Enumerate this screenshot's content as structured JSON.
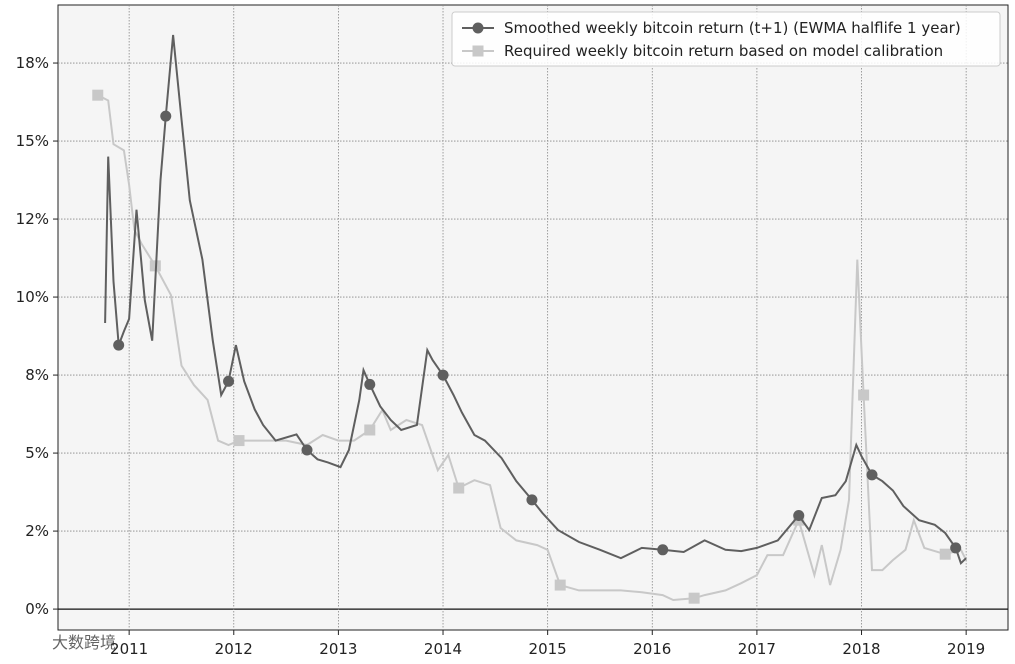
{
  "chart_data": {
    "type": "line",
    "xlim": [
      2010.32,
      2019.4
    ],
    "xticks": [
      2011,
      2012,
      2013,
      2014,
      2015,
      2016,
      2017,
      2018,
      2019
    ],
    "ylim": [
      -0.67,
      19.36
    ],
    "yticks": [
      0,
      {
        "value": 2.5,
        "label": "2%"
      },
      5,
      {
        "value": 7.5,
        "label": "8%"
      },
      10,
      {
        "value": 12.5,
        "label": "12%"
      },
      15,
      {
        "value": 17.5,
        "label": "18%"
      }
    ],
    "ytick_labels": [
      "0%",
      "2%",
      "5%",
      "8%",
      "10%",
      "12%",
      "15%",
      "18%"
    ],
    "grid": true,
    "legend": "upper right",
    "watermark": "大数跨境",
    "series": [
      {
        "name": "Smoothed weekly bitcoin return (t+1) (EWMA halflife 1 year)",
        "color": "#5f5f5f",
        "marker": "circle",
        "x": [
          2010.77,
          2010.8,
          2010.85,
          2010.9,
          2010.95,
          2011.0,
          2011.07,
          2011.15,
          2011.22,
          2011.3,
          2011.35,
          2011.42,
          2011.5,
          2011.58,
          2011.7,
          2011.8,
          2011.88,
          2011.95,
          2012.02,
          2012.1,
          2012.2,
          2012.28,
          2012.4,
          2012.6,
          2012.7,
          2012.8,
          2012.9,
          2013.02,
          2013.1,
          2013.2,
          2013.24,
          2013.3,
          2013.4,
          2013.5,
          2013.6,
          2013.75,
          2013.85,
          2013.9,
          2014.0,
          2014.1,
          2014.18,
          2014.3,
          2014.4,
          2014.56,
          2014.7,
          2014.85,
          2014.95,
          2015.1,
          2015.3,
          2015.5,
          2015.7,
          2015.9,
          2016.1,
          2016.3,
          2016.5,
          2016.7,
          2016.85,
          2017.0,
          2017.2,
          2017.4,
          2017.5,
          2017.62,
          2017.75,
          2017.85,
          2017.95,
          2018.0,
          2018.1,
          2018.2,
          2018.3,
          2018.4,
          2018.55,
          2018.7,
          2018.8,
          2018.9,
          2018.95,
          2019.0
        ],
        "values": [
          9.17,
          14.5,
          10.5,
          8.46,
          8.9,
          9.3,
          12.8,
          9.9,
          8.6,
          13.75,
          15.8,
          18.4,
          15.7,
          13.1,
          11.2,
          8.6,
          6.86,
          7.3,
          8.46,
          7.3,
          6.4,
          5.9,
          5.4,
          5.6,
          5.1,
          4.8,
          4.7,
          4.55,
          5.1,
          6.7,
          7.66,
          7.2,
          6.5,
          6.06,
          5.74,
          5.9,
          8.3,
          7.98,
          7.5,
          6.86,
          6.3,
          5.58,
          5.4,
          4.84,
          4.1,
          3.5,
          3.08,
          2.53,
          2.15,
          1.9,
          1.63,
          1.96,
          1.9,
          1.83,
          2.2,
          1.9,
          1.86,
          1.96,
          2.2,
          3.0,
          2.53,
          3.56,
          3.65,
          4.1,
          5.26,
          4.9,
          4.3,
          4.1,
          3.8,
          3.3,
          2.85,
          2.7,
          2.44,
          1.96,
          1.47,
          1.63
        ]
      },
      {
        "name": "Required weekly bitcoin return based on model calibration",
        "color": "#c8c8c8",
        "marker": "square",
        "x": [
          2010.7,
          2010.8,
          2010.85,
          2010.95,
          2011.0,
          2011.05,
          2011.12,
          2011.25,
          2011.4,
          2011.5,
          2011.62,
          2011.75,
          2011.85,
          2011.95,
          2012.05,
          2012.3,
          2012.5,
          2012.7,
          2012.85,
          2013.0,
          2013.15,
          2013.3,
          2013.42,
          2013.5,
          2013.65,
          2013.8,
          2013.95,
          2014.05,
          2014.15,
          2014.3,
          2014.45,
          2014.55,
          2014.7,
          2014.9,
          2015.0,
          2015.12,
          2015.3,
          2015.5,
          2015.7,
          2015.9,
          2016.1,
          2016.2,
          2016.4,
          2016.5,
          2016.7,
          2016.85,
          2017.0,
          2017.1,
          2017.25,
          2017.4,
          2017.55,
          2017.62,
          2017.7,
          2017.8,
          2017.88,
          2017.96,
          2018.02,
          2018.1,
          2018.2,
          2018.3,
          2018.42,
          2018.5,
          2018.6,
          2018.8,
          2018.95,
          2019.0
        ],
        "values": [
          16.47,
          16.3,
          14.9,
          14.7,
          13.6,
          12.15,
          11.7,
          11.0,
          10.06,
          7.8,
          7.18,
          6.7,
          5.4,
          5.26,
          5.4,
          5.4,
          5.4,
          5.26,
          5.58,
          5.4,
          5.4,
          5.74,
          6.38,
          5.74,
          6.06,
          5.9,
          4.45,
          4.94,
          3.88,
          4.13,
          3.97,
          2.6,
          2.2,
          2.05,
          1.9,
          0.77,
          0.6,
          0.6,
          0.6,
          0.54,
          0.45,
          0.29,
          0.35,
          0.45,
          0.6,
          0.83,
          1.09,
          1.73,
          1.73,
          2.85,
          1.09,
          2.05,
          0.77,
          1.9,
          3.5,
          11.2,
          6.86,
          1.25,
          1.25,
          1.57,
          1.9,
          2.85,
          1.96,
          1.76,
          1.9,
          1.57
        ]
      }
    ]
  }
}
